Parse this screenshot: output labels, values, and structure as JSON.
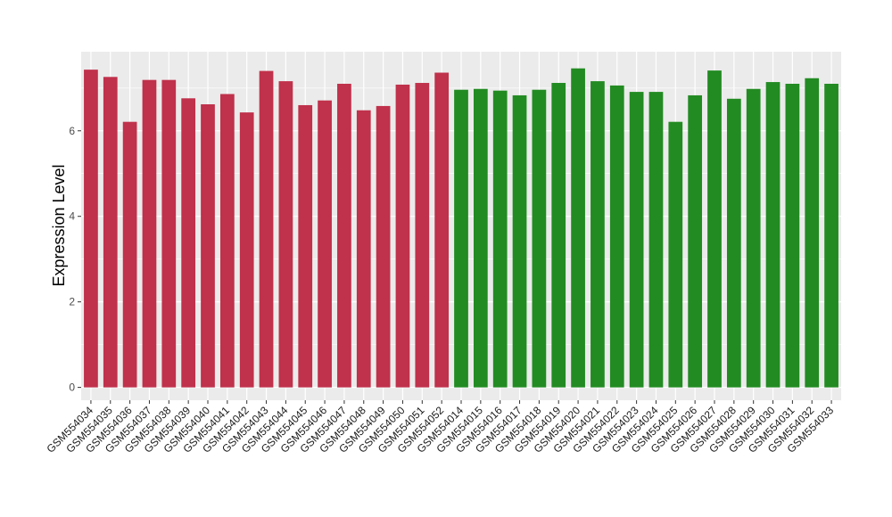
{
  "chart_data": {
    "type": "bar",
    "title": "",
    "xlabel": "",
    "ylabel": "Expression Level",
    "ylim": [
      -0.3,
      7.85
    ],
    "yticks": [
      0,
      2,
      4,
      6
    ],
    "grid": true,
    "legend": "none",
    "colors": {
      "group1": "#c0314b",
      "group2": "#228b22",
      "panel": "#ebebeb",
      "gridline": "#ffffff"
    },
    "categories": [
      "GSM554034",
      "GSM554035",
      "GSM554036",
      "GSM554037",
      "GSM554038",
      "GSM554039",
      "GSM554040",
      "GSM554041",
      "GSM554042",
      "GSM554043",
      "GSM554044",
      "GSM554045",
      "GSM554046",
      "GSM554047",
      "GSM554048",
      "GSM554049",
      "GSM554050",
      "GSM554051",
      "GSM554052",
      "GSM554014",
      "GSM554015",
      "GSM554016",
      "GSM554017",
      "GSM554018",
      "GSM554019",
      "GSM554020",
      "GSM554021",
      "GSM554022",
      "GSM554023",
      "GSM554024",
      "GSM554025",
      "GSM554026",
      "GSM554027",
      "GSM554028",
      "GSM554029",
      "GSM554030",
      "GSM554031",
      "GSM554032",
      "GSM554033"
    ],
    "values": [
      7.43,
      7.26,
      6.21,
      7.19,
      7.19,
      6.76,
      6.62,
      6.86,
      6.43,
      7.4,
      7.16,
      6.6,
      6.71,
      7.1,
      6.48,
      6.58,
      7.08,
      7.12,
      7.36,
      6.96,
      6.98,
      6.94,
      6.83,
      6.96,
      7.12,
      7.46,
      7.16,
      7.06,
      6.91,
      6.91,
      6.21,
      6.83,
      7.41,
      6.75,
      6.98,
      7.14,
      7.1,
      7.23,
      7.1
    ],
    "groups": [
      1,
      1,
      1,
      1,
      1,
      1,
      1,
      1,
      1,
      1,
      1,
      1,
      1,
      1,
      1,
      1,
      1,
      1,
      1,
      2,
      2,
      2,
      2,
      2,
      2,
      2,
      2,
      2,
      2,
      2,
      2,
      2,
      2,
      2,
      2,
      2,
      2,
      2,
      2
    ]
  }
}
